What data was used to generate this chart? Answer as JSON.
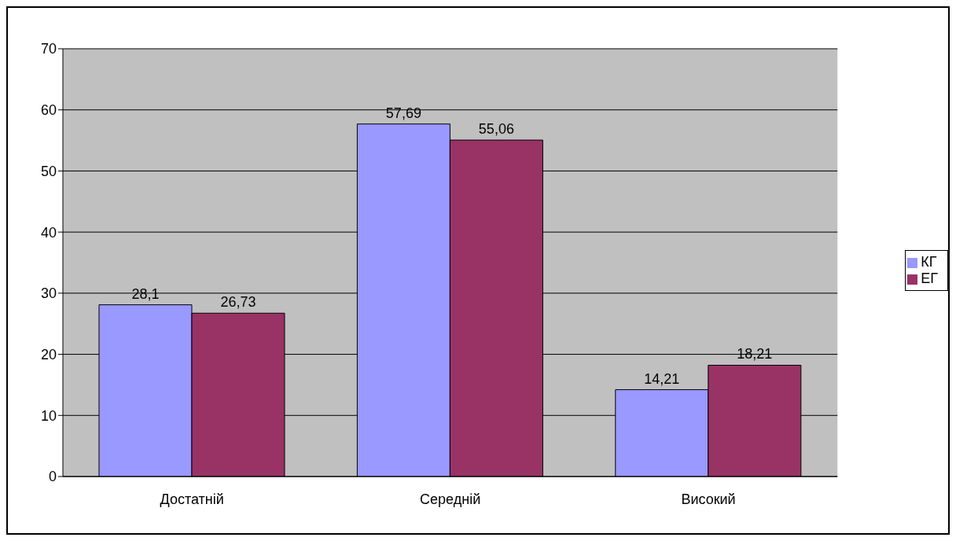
{
  "chart_data": {
    "type": "bar",
    "categories": [
      "Достатній",
      "Середній",
      "Високий"
    ],
    "series": [
      {
        "name": "КГ",
        "color": "#9999ff",
        "values": [
          28.1,
          57.69,
          14.21
        ],
        "value_labels": [
          "28,1",
          "57,69",
          "14,21"
        ]
      },
      {
        "name": "ЕГ",
        "color": "#993366",
        "values": [
          26.73,
          55.06,
          18.21
        ],
        "value_labels": [
          "26,73",
          "55,06",
          "18,21"
        ]
      }
    ],
    "ylim": [
      0,
      70
    ],
    "yticks": [
      0,
      10,
      20,
      30,
      40,
      50,
      60,
      70
    ],
    "grid": "y",
    "legend": "right"
  }
}
